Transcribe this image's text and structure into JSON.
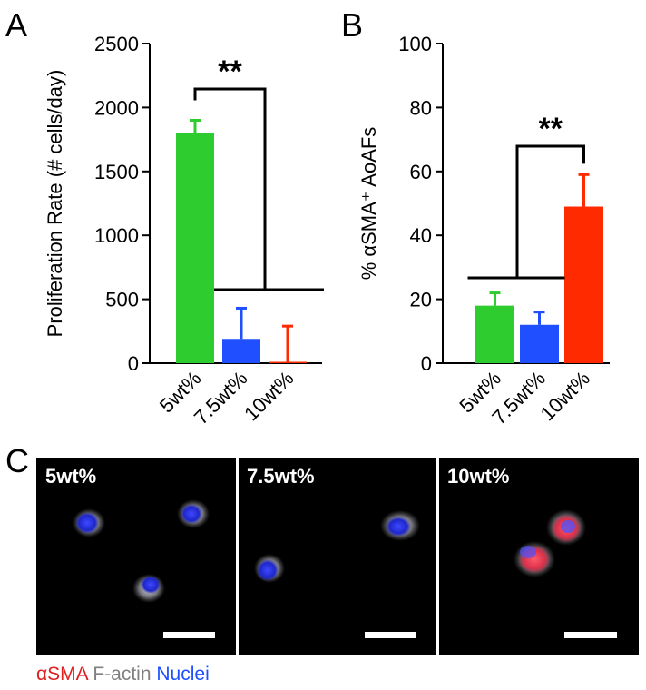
{
  "panels": {
    "a": "A",
    "b": "B",
    "c": "C"
  },
  "chart_data": [
    {
      "type": "bar",
      "panel": "A",
      "ylabel": "Proliferation Rate (# cells/day)",
      "ylim": [
        0,
        2500
      ],
      "yticks": [
        "0",
        "500",
        "1000",
        "1500",
        "2000",
        "2500"
      ],
      "yticks_values": [
        0,
        500,
        1000,
        1500,
        2000,
        2500
      ],
      "categories": [
        "5wt%",
        "7.5wt%",
        "10wt%"
      ],
      "values": [
        1800,
        190,
        10
      ],
      "errors": [
        100,
        240,
        280
      ],
      "colors": [
        "#2ecc2e",
        "#1f4fff",
        "#ff2a00"
      ],
      "significance": "**",
      "grid": false
    },
    {
      "type": "bar",
      "panel": "B",
      "ylabel": "% αSMA⁺ AoAFs",
      "ylim": [
        0,
        100
      ],
      "yticks": [
        "0",
        "20",
        "40",
        "60",
        "80",
        "100"
      ],
      "yticks_values": [
        0,
        20,
        40,
        60,
        80,
        100
      ],
      "categories": [
        "5wt%",
        "7.5wt%",
        "10wt%"
      ],
      "values": [
        18,
        12,
        49
      ],
      "errors": [
        4,
        4,
        10
      ],
      "colors": [
        "#2ecc2e",
        "#1f4fff",
        "#ff2a00"
      ],
      "significance": "**",
      "grid": false
    }
  ],
  "micrographs": [
    {
      "label": "5wt%"
    },
    {
      "label": "7.5wt%"
    },
    {
      "label": "10wt%"
    }
  ],
  "legend": [
    {
      "text": "αSMA",
      "color": "#e02020"
    },
    {
      "text": "F-actin",
      "color": "#808080"
    },
    {
      "text": "Nuclei",
      "color": "#1f4fff"
    }
  ]
}
